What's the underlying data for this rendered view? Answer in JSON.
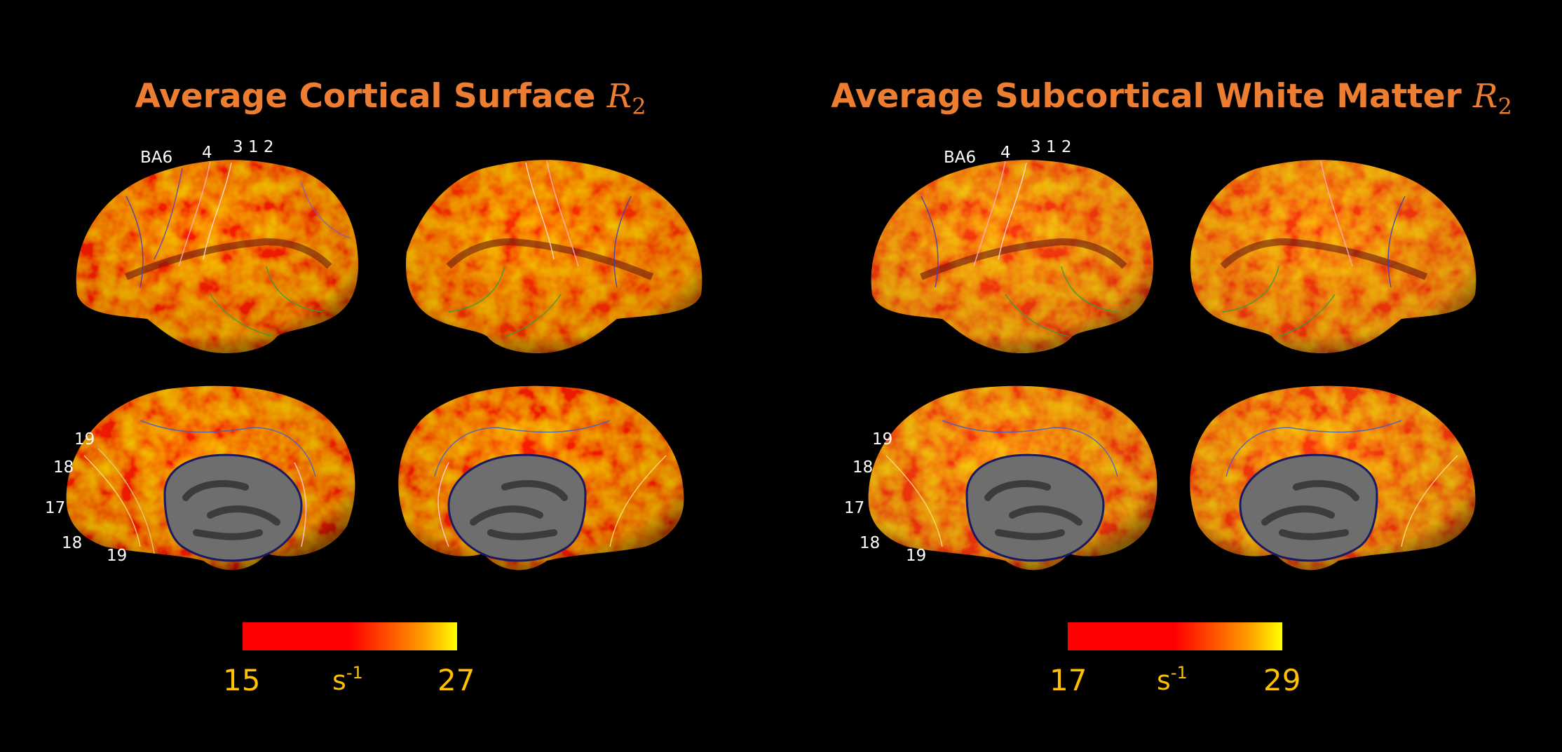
{
  "colors": {
    "title": "#ED7D31",
    "tick": "#FFC000",
    "label": "#FFFFFF",
    "background": "#000000",
    "colormap_low": "#FF0000",
    "colormap_high": "#FFFF00"
  },
  "panels": [
    {
      "title_text": "Average Cortical Surface ",
      "title_symbol": "R",
      "title_subscript": "2",
      "labels": {
        "ba6": "BA6",
        "ba4": "4",
        "ba312": "3 1 2",
        "m19a": "19",
        "m18a": "18",
        "m17": "17",
        "m18b": "18",
        "m19b": "19"
      },
      "colorbar": {
        "min": "15",
        "unit_base": "s",
        "unit_exp": "-1",
        "max": "27"
      }
    },
    {
      "title_text": "Average Subcortical White Matter ",
      "title_symbol": "R",
      "title_subscript": "2",
      "labels": {
        "ba6": "BA6",
        "ba4": "4",
        "ba312": "3 1 2",
        "m19a": "19",
        "m18a": "18",
        "m17": "17",
        "m18b": "18",
        "m19b": "19"
      },
      "colorbar": {
        "min": "17",
        "unit_base": "s",
        "unit_exp": "-1",
        "max": "29"
      }
    }
  ]
}
